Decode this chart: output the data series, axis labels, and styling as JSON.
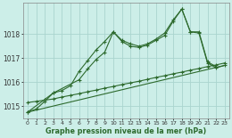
{
  "xlabel": "Graphe pression niveau de la mer (hPa)",
  "bg_color": "#cceee8",
  "grid_color": "#aad4ce",
  "line_color": "#2d6a2d",
  "x_ticks": [
    0,
    1,
    2,
    3,
    4,
    5,
    6,
    7,
    8,
    9,
    10,
    11,
    12,
    13,
    14,
    15,
    16,
    17,
    18,
    19,
    20,
    21,
    22,
    23
  ],
  "yticks": [
    1015,
    1016,
    1017,
    1018
  ],
  "ylim": [
    1014.5,
    1019.3
  ],
  "xlim": [
    -0.5,
    23.5
  ],
  "line1_x": [
    0,
    1,
    2,
    3,
    4,
    5,
    6,
    7,
    8,
    9,
    10,
    11,
    12,
    13,
    14,
    15,
    16,
    17,
    18,
    19,
    20,
    21,
    22
  ],
  "line1_y": [
    1014.75,
    1014.88,
    1015.2,
    1015.55,
    1015.65,
    1015.85,
    1016.45,
    1016.9,
    1017.35,
    1017.7,
    1018.1,
    1017.75,
    1017.6,
    1017.5,
    1017.6,
    1017.8,
    1018.05,
    1018.6,
    1019.05,
    1018.1,
    1018.1,
    1016.85,
    1016.65
  ],
  "line2_x": [
    0,
    3,
    6,
    7,
    8,
    9,
    10,
    11,
    12,
    13,
    14,
    15,
    16,
    17,
    18,
    19,
    20,
    21,
    22,
    23
  ],
  "line2_y": [
    1014.75,
    1015.55,
    1016.1,
    1016.55,
    1016.95,
    1017.25,
    1018.1,
    1017.7,
    1017.5,
    1017.45,
    1017.55,
    1017.75,
    1017.95,
    1018.55,
    1019.05,
    1018.1,
    1018.05,
    1016.8,
    1016.6,
    1016.7
  ],
  "line3_x": [
    0,
    1,
    2,
    3,
    4,
    5,
    6,
    7,
    8,
    9,
    10,
    11,
    12,
    13,
    14,
    15,
    16,
    17,
    18,
    19,
    20,
    21,
    22,
    23
  ],
  "line3_y": [
    1015.15,
    1015.2,
    1015.25,
    1015.3,
    1015.38,
    1015.45,
    1015.52,
    1015.6,
    1015.67,
    1015.75,
    1015.82,
    1015.9,
    1015.97,
    1016.04,
    1016.12,
    1016.2,
    1016.27,
    1016.35,
    1016.42,
    1016.5,
    1016.57,
    1016.65,
    1016.72,
    1016.8
  ],
  "line4_x": [
    0,
    23
  ],
  "line4_y": [
    1014.75,
    1016.7
  ]
}
